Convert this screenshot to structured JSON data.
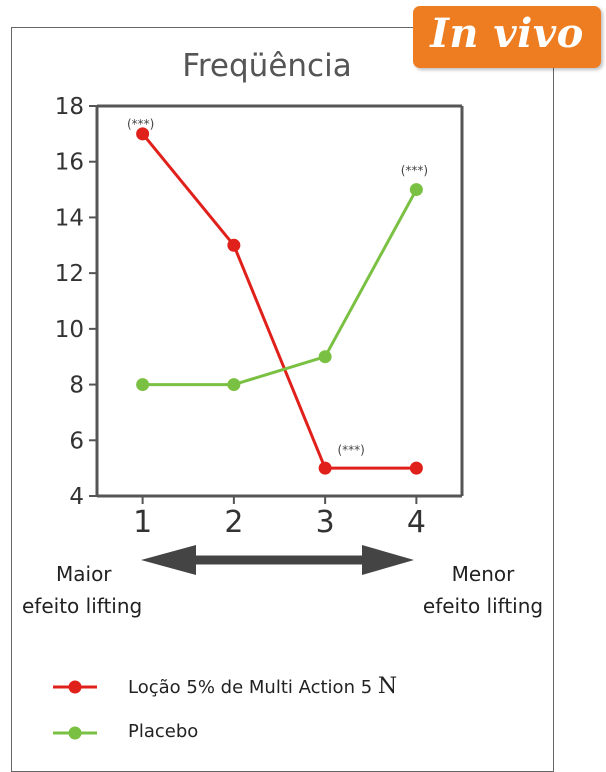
{
  "badge": {
    "label": "In vivo",
    "color": "#ee7d21"
  },
  "chart_data": {
    "type": "line",
    "title": "Freqüência",
    "x": [
      1,
      2,
      3,
      4
    ],
    "xticks": [
      "1",
      "2",
      "3",
      "4"
    ],
    "yticks": [
      "4",
      "6",
      "8",
      "10",
      "12",
      "14",
      "16",
      "18"
    ],
    "ylim": [
      4,
      18
    ],
    "xlim": [
      0.5,
      4.5
    ],
    "series": [
      {
        "name": "Loção 5% de Multi Action 5",
        "name_suffix": "N",
        "color": "#e0201b",
        "values": [
          17,
          13,
          5,
          5
        ]
      },
      {
        "name": "Placebo",
        "color": "#7ac143",
        "values": [
          8,
          8,
          9,
          15
        ]
      }
    ],
    "annotations": [
      {
        "text": "(***)",
        "x": 1,
        "y": 17
      },
      {
        "text": "(***)",
        "x": 4,
        "y": 15
      },
      {
        "text": "(***)",
        "x": 3,
        "y": 5
      }
    ]
  },
  "axis_arrow": {
    "left_label_line1": "Maior",
    "left_label_line2": "efeito lifting",
    "right_label_line1": "Menor",
    "right_label_line2": "efeito lifting"
  }
}
